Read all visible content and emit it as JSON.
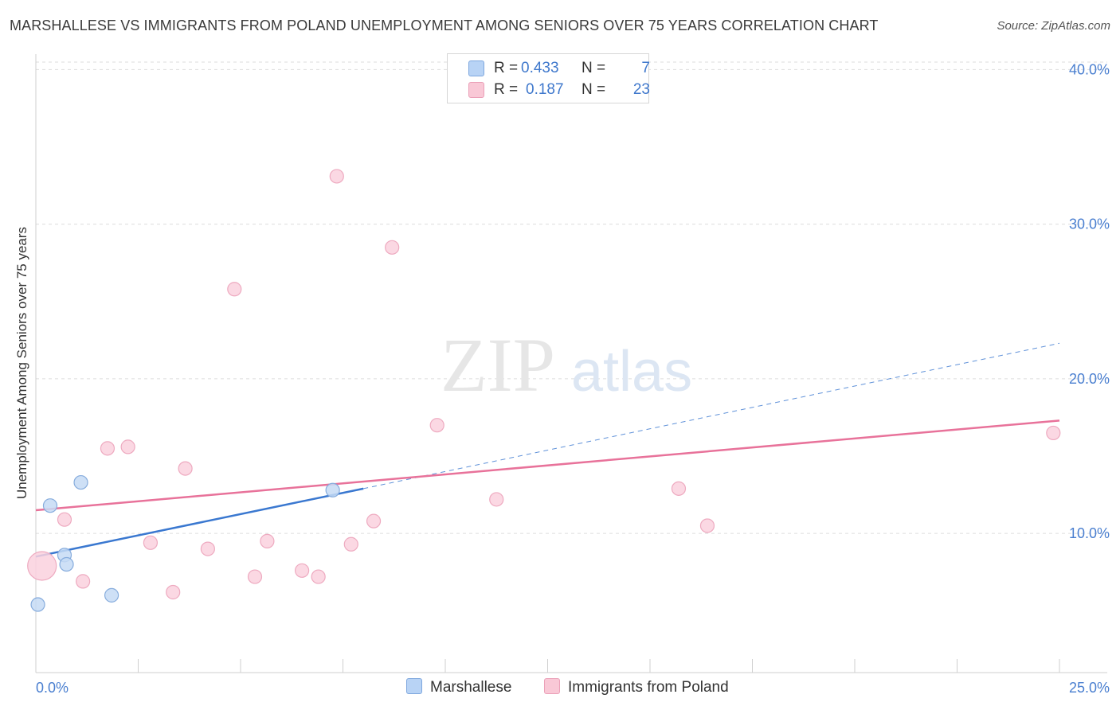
{
  "title": "MARSHALLESE VS IMMIGRANTS FROM POLAND UNEMPLOYMENT AMONG SENIORS OVER 75 YEARS CORRELATION CHART",
  "source": "Source: ZipAtlas.com",
  "watermark": {
    "zip": "ZIP",
    "atlas": "atlas"
  },
  "legend": {
    "r_label": "R =",
    "n_label": "N =",
    "rows": [
      {
        "name": "Marshallese",
        "r": "0.433",
        "n": "7",
        "fill": "#b8d3f5",
        "stroke": "#7ea7de"
      },
      {
        "name": "Immigrants from Poland",
        "r": "0.187",
        "n": "23",
        "fill": "#f9c8d6",
        "stroke": "#eba0b8"
      }
    ]
  },
  "colors": {
    "blue": "#3a78d0",
    "pink": "#e8729a",
    "blue_fill": "#c5dbf5",
    "blue_stroke": "#86acdd",
    "pink_fill": "#fad1de",
    "pink_stroke": "#eeaac0",
    "axis_label": "#4a7fd0",
    "grid": "#dddddd"
  },
  "chart_data": {
    "type": "scatter",
    "title": "MARSHALLESE VS IMMIGRANTS FROM POLAND UNEMPLOYMENT AMONG SENIORS OVER 75 YEARS CORRELATION CHART",
    "xlabel": "",
    "ylabel": "Unemployment Among Seniors over 75 years",
    "xlim": [
      0,
      25
    ],
    "ylim": [
      1,
      41
    ],
    "x_tick_labels": [
      "0.0%",
      "25.0%"
    ],
    "y_ticks": [
      10,
      20,
      30,
      40
    ],
    "y_tick_labels": [
      "10.0%",
      "20.0%",
      "30.0%",
      "40.0%"
    ],
    "grid": true,
    "legend_position": "bottom-center",
    "series": [
      {
        "name": "Marshallese",
        "points": [
          {
            "x": 0.05,
            "y": 5.4
          },
          {
            "x": 0.35,
            "y": 11.8
          },
          {
            "x": 0.7,
            "y": 8.6
          },
          {
            "x": 0.75,
            "y": 8.0
          },
          {
            "x": 1.1,
            "y": 13.3
          },
          {
            "x": 1.85,
            "y": 6.0
          },
          {
            "x": 7.25,
            "y": 12.8
          }
        ],
        "trend": {
          "x0": 0.0,
          "y0": 8.5,
          "x1": 8.0,
          "y1": 12.9,
          "dashed_to_x": 25.0,
          "dashed_to_y": 22.3
        }
      },
      {
        "name": "Immigrants from Poland",
        "points": [
          {
            "x": 0.15,
            "y": 7.9,
            "big": true
          },
          {
            "x": 0.7,
            "y": 10.9
          },
          {
            "x": 1.15,
            "y": 6.9
          },
          {
            "x": 1.75,
            "y": 15.5
          },
          {
            "x": 2.25,
            "y": 15.6
          },
          {
            "x": 2.8,
            "y": 9.4
          },
          {
            "x": 3.35,
            "y": 6.2
          },
          {
            "x": 3.65,
            "y": 14.2
          },
          {
            "x": 4.2,
            "y": 9.0
          },
          {
            "x": 4.85,
            "y": 25.8
          },
          {
            "x": 5.35,
            "y": 7.2
          },
          {
            "x": 5.65,
            "y": 9.5
          },
          {
            "x": 6.5,
            "y": 7.6
          },
          {
            "x": 6.9,
            "y": 7.2
          },
          {
            "x": 7.35,
            "y": 33.1
          },
          {
            "x": 7.7,
            "y": 9.3
          },
          {
            "x": 8.25,
            "y": 10.8
          },
          {
            "x": 8.7,
            "y": 28.5
          },
          {
            "x": 9.8,
            "y": 17.0
          },
          {
            "x": 11.25,
            "y": 12.2
          },
          {
            "x": 15.7,
            "y": 12.9
          },
          {
            "x": 16.4,
            "y": 10.5
          },
          {
            "x": 24.85,
            "y": 16.5
          }
        ],
        "trend": {
          "x0": 0.0,
          "y0": 11.5,
          "x1": 25.0,
          "y1": 17.3
        }
      }
    ]
  }
}
